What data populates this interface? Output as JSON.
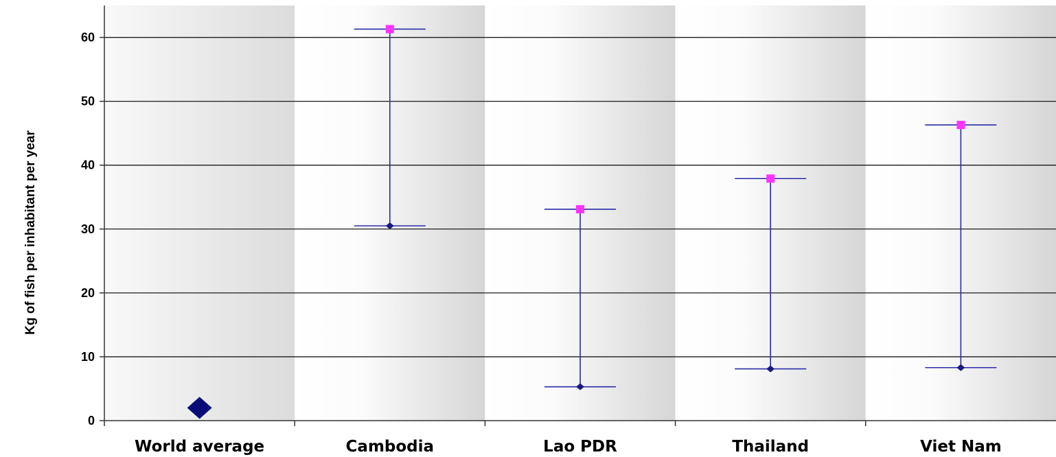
{
  "chart_data": {
    "type": "range",
    "title": "",
    "xlabel": "",
    "ylabel": "Kg of fish per inhabitant per year",
    "ylim": [
      0,
      65
    ],
    "yticks": [
      0,
      10,
      20,
      30,
      40,
      50,
      60
    ],
    "grid": true,
    "categories": [
      "World average",
      "Cambodia",
      "Lao PDR",
      "Thailand",
      "Viet Nam"
    ],
    "series": [
      {
        "values": [
          2.0,
          30.5,
          5.3,
          8.1,
          8.3
        ]
      },
      {
        "values": [
          null,
          61.3,
          33.1,
          37.9,
          46.3
        ]
      }
    ],
    "colors": {
      "range_line": "#2a2aa8",
      "low_marker": "#1a1a80",
      "high_marker": "#ff33ff",
      "world_marker": "#0a0a78",
      "gridline": "#1a1a1a"
    }
  }
}
